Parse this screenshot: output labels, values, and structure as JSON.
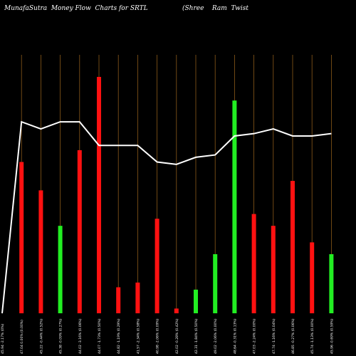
{
  "header": {
    "left": "MunafaSutra  Money Flow  Charts for SRTL",
    "right": "(Shree    Ram  Twist"
  },
  "chart_data": {
    "type": "bar",
    "categories": [
      "",
      "",
      " ",
      "",
      "",
      "",
      "",
      "",
      "",
      "",
      "",
      "",
      "",
      "",
      "",
      "",
      "",
      ""
    ],
    "x_tick_labels": [
      "45.94 -2.17% (0%)",
      "47.04 0.00% (0.00%)",
      "45.22 -0.44% (0.52%)",
      "45.38 -0.09% (0.27%)",
      "44.02 -3.16% (0.06%)",
      "44.07 -1.73% (0.50%)",
      "44.82 -1.19% (0.29%)",
      "41.57 -2.34% (0.58%)",
      "40.98 -2.06% (0.09%)",
      "42.02 -0.28% (0.42%)",
      "42.31 -1.84% (0.50%)",
      "49.02 -2.06% (0.00%)",
      "48.64 -0.31% (0.13%)",
      "47.03 -2.24% (0.00%)",
      "47.74 -1.16% (0.04%)",
      "46.85 -0.27% (0.06%)",
      "45.74 -1.13% (0.00%)",
      "45.96 -0.69% (0.59%)"
    ],
    "bars": [
      {
        "value": 0.0,
        "direction": "none"
      },
      {
        "value": 0.64,
        "direction": "down"
      },
      {
        "value": 0.52,
        "direction": "down"
      },
      {
        "value": 0.37,
        "direction": "up"
      },
      {
        "value": 0.69,
        "direction": "down"
      },
      {
        "value": 1.0,
        "direction": "down"
      },
      {
        "value": 0.11,
        "direction": "down"
      },
      {
        "value": 0.13,
        "direction": "down"
      },
      {
        "value": 0.4,
        "direction": "down"
      },
      {
        "value": 0.02,
        "direction": "down"
      },
      {
        "value": 0.1,
        "direction": "up"
      },
      {
        "value": 0.25,
        "direction": "up"
      },
      {
        "value": 0.9,
        "direction": "up"
      },
      {
        "value": 0.42,
        "direction": "down"
      },
      {
        "value": 0.37,
        "direction": "down"
      },
      {
        "value": 0.56,
        "direction": "down"
      },
      {
        "value": 0.3,
        "direction": "down"
      },
      {
        "value": 0.25,
        "direction": "up"
      }
    ],
    "price_line": [
      0.0,
      0.81,
      0.78,
      0.81,
      0.81,
      0.71,
      0.71,
      0.71,
      0.64,
      0.63,
      0.66,
      0.67,
      0.75,
      0.76,
      0.78,
      0.75,
      0.75,
      0.76
    ],
    "ylim": [
      0,
      1
    ],
    "grid": "vertical",
    "colors": {
      "background": "#000000",
      "up": "#22ee22",
      "down": "#ff1111",
      "line": "#ffffff",
      "grid": "#8b5a1a",
      "text": "#ffffff"
    }
  }
}
